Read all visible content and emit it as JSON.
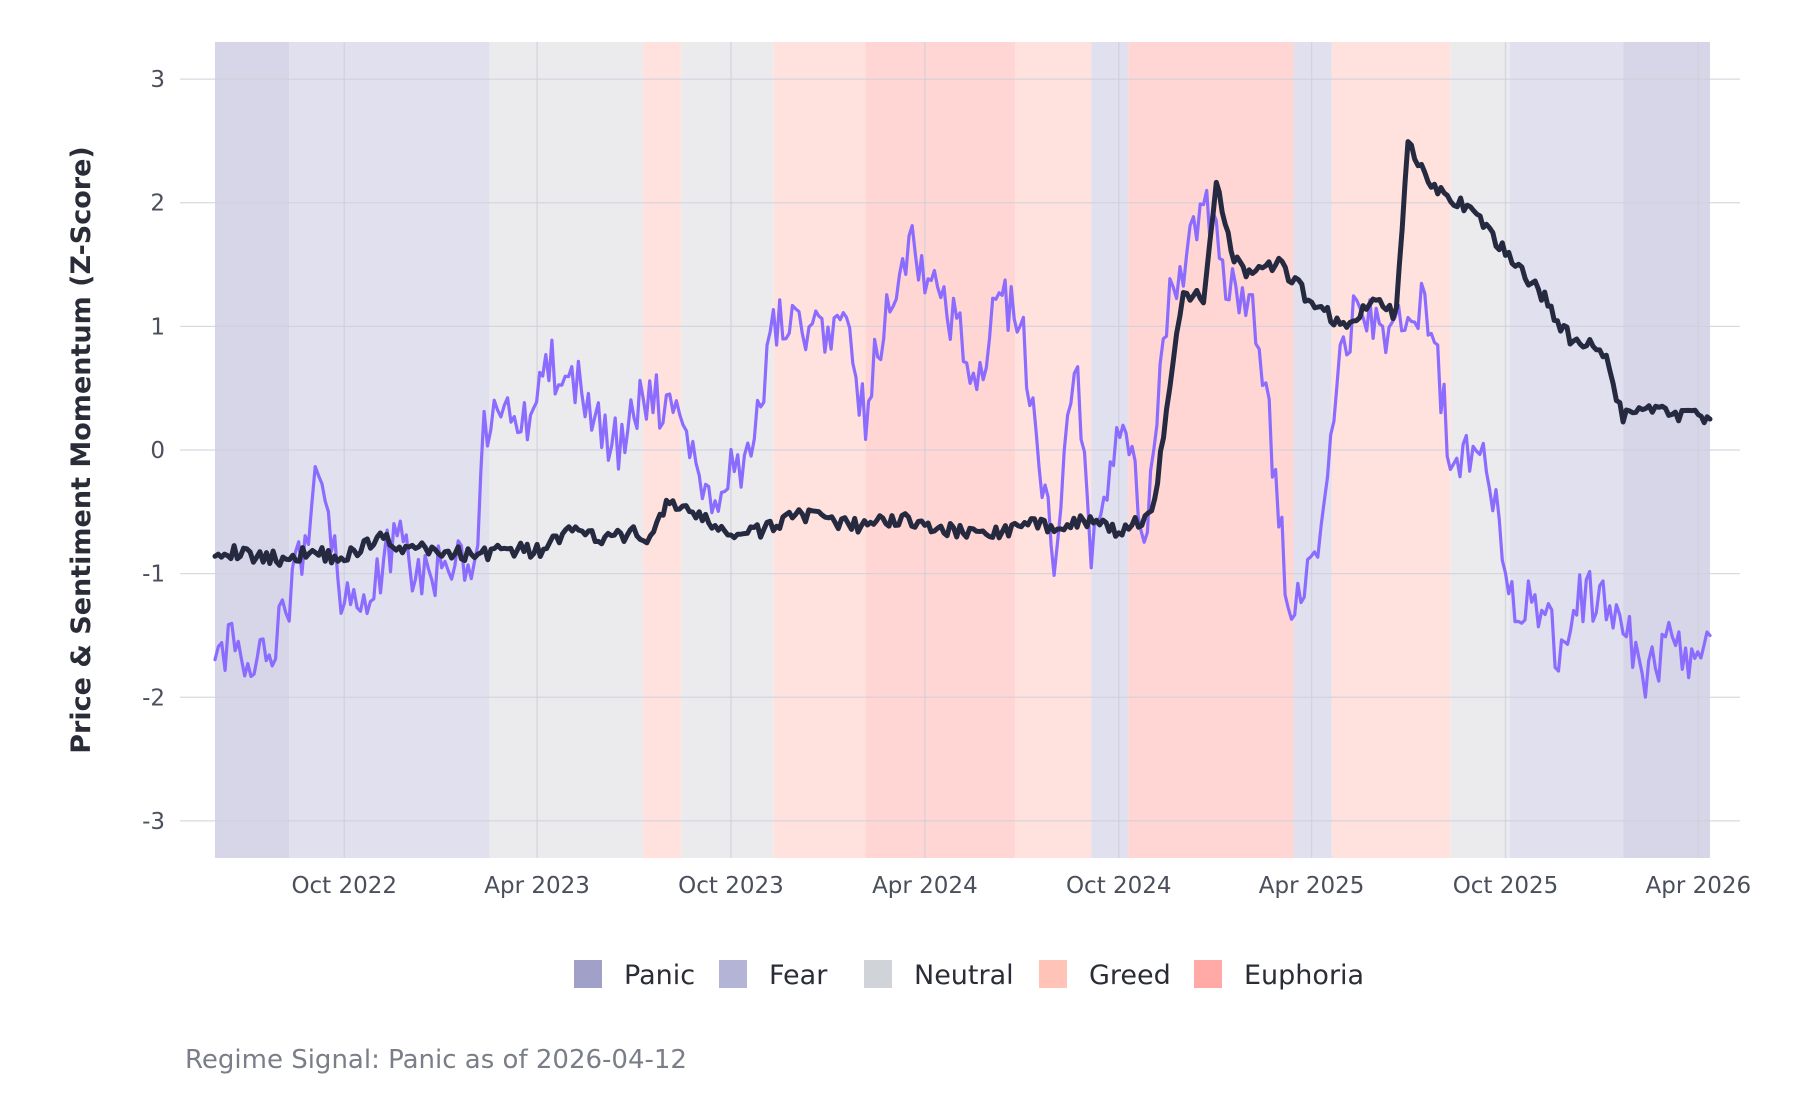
{
  "chart_data": {
    "type": "line",
    "title": "",
    "xlabel": "",
    "ylabel": "Price & Sentiment Momentum (Z-Score)",
    "caption": "Regime Signal: Panic as of 2026-04-12",
    "xlim": [
      "2022-06-01",
      "2026-04-12"
    ],
    "ylim": [
      -3.3,
      3.3
    ],
    "x_ticks": [
      "Oct 2022",
      "Apr 2023",
      "Oct 2023",
      "Apr 2024",
      "Oct 2024",
      "Apr 2025",
      "Oct 2025",
      "Apr 2026"
    ],
    "x_tick_dates": [
      "2022-10-01",
      "2023-04-01",
      "2023-10-01",
      "2024-04-01",
      "2024-10-01",
      "2025-04-01",
      "2025-10-01",
      "2026-04-01"
    ],
    "y_ticks": [
      "3",
      "2",
      "1",
      "0",
      "-1",
      "-2",
      "-3"
    ],
    "y_tick_values": [
      3,
      2,
      1,
      0,
      -1,
      -2,
      -3
    ],
    "grid": true,
    "legend_position": "bottom",
    "legend": [
      {
        "label": "Panic",
        "color": "#a0a0c8"
      },
      {
        "label": "Fear",
        "color": "#b4b4d6"
      },
      {
        "label": "Neutral",
        "color": "#d0d3d8"
      },
      {
        "label": "Greed",
        "color": "#ffc3b8"
      },
      {
        "label": "Euphoria",
        "color": "#ffaaa6"
      }
    ],
    "regime_colors": {
      "Panic": "#d6d6e8",
      "Fear": "#e0e0ee",
      "Neutral": "#ebebee",
      "Greed": "#ffe2de",
      "Euphoria": "#ffd6d3"
    },
    "regimes": [
      {
        "start": "2022-06-01",
        "end": "2022-08-10",
        "regime": "Panic"
      },
      {
        "start": "2022-08-10",
        "end": "2023-02-15",
        "regime": "Fear"
      },
      {
        "start": "2023-02-15",
        "end": "2023-07-10",
        "regime": "Neutral"
      },
      {
        "start": "2023-07-10",
        "end": "2023-08-15",
        "regime": "Greed"
      },
      {
        "start": "2023-08-15",
        "end": "2023-11-10",
        "regime": "Neutral"
      },
      {
        "start": "2023-11-10",
        "end": "2024-02-05",
        "regime": "Greed"
      },
      {
        "start": "2024-02-05",
        "end": "2024-06-25",
        "regime": "Euphoria"
      },
      {
        "start": "2024-06-25",
        "end": "2024-09-05",
        "regime": "Greed"
      },
      {
        "start": "2024-09-05",
        "end": "2024-10-10",
        "regime": "Fear"
      },
      {
        "start": "2024-10-10",
        "end": "2025-03-15",
        "regime": "Euphoria"
      },
      {
        "start": "2025-03-15",
        "end": "2025-04-20",
        "regime": "Fear"
      },
      {
        "start": "2025-04-20",
        "end": "2025-08-10",
        "regime": "Greed"
      },
      {
        "start": "2025-08-10",
        "end": "2025-10-05",
        "regime": "Neutral"
      },
      {
        "start": "2025-10-05",
        "end": "2026-01-20",
        "regime": "Fear"
      },
      {
        "start": "2026-01-20",
        "end": "2026-04-12",
        "regime": "Panic"
      }
    ],
    "series": [
      {
        "color": "#262a40",
        "x": [
          "2022-06-01",
          "2022-07-01",
          "2022-08-01",
          "2022-09-01",
          "2022-10-01",
          "2022-11-01",
          "2022-12-01",
          "2023-01-01",
          "2023-02-01",
          "2023-03-01",
          "2023-04-01",
          "2023-05-01",
          "2023-06-01",
          "2023-07-01",
          "2023-07-20",
          "2023-08-01",
          "2023-09-01",
          "2023-10-01",
          "2023-11-01",
          "2023-12-01",
          "2024-01-01",
          "2024-02-01",
          "2024-03-01",
          "2024-04-01",
          "2024-05-01",
          "2024-06-01",
          "2024-07-01",
          "2024-08-01",
          "2024-09-01",
          "2024-10-01",
          "2024-11-01",
          "2024-11-15",
          "2024-12-01",
          "2024-12-20",
          "2025-01-01",
          "2025-01-15",
          "2025-02-01",
          "2025-03-01",
          "2025-04-01",
          "2025-05-01",
          "2025-06-01",
          "2025-06-20",
          "2025-07-01",
          "2025-07-20",
          "2025-08-01",
          "2025-09-01",
          "2025-10-01",
          "2025-11-01",
          "2025-12-01",
          "2026-01-01",
          "2026-01-20",
          "2026-02-01",
          "2026-03-01",
          "2026-04-01",
          "2026-04-12"
        ],
        "y": [
          -0.8,
          -0.85,
          -0.88,
          -0.82,
          -0.88,
          -0.7,
          -0.8,
          -0.82,
          -0.85,
          -0.8,
          -0.82,
          -0.66,
          -0.72,
          -0.68,
          -0.7,
          -0.4,
          -0.55,
          -0.68,
          -0.66,
          -0.5,
          -0.58,
          -0.62,
          -0.55,
          -0.6,
          -0.66,
          -0.68,
          -0.62,
          -0.6,
          -0.58,
          -0.66,
          -0.55,
          0.3,
          1.3,
          1.2,
          2.2,
          1.6,
          1.4,
          1.5,
          1.2,
          1.0,
          1.2,
          1.1,
          2.5,
          2.2,
          2.1,
          1.9,
          1.6,
          1.3,
          0.9,
          0.8,
          0.25,
          0.35,
          0.3,
          0.28,
          0.25
        ]
      },
      {
        "color": "#8b6cff",
        "x": [
          "2022-06-01",
          "2022-06-20",
          "2022-07-05",
          "2022-07-25",
          "2022-08-10",
          "2022-08-25",
          "2022-09-10",
          "2022-09-25",
          "2022-10-10",
          "2022-11-01",
          "2022-11-20",
          "2022-12-10",
          "2023-01-01",
          "2023-02-01",
          "2023-02-10",
          "2023-03-01",
          "2023-03-20",
          "2023-04-15",
          "2023-05-10",
          "2023-06-01",
          "2023-06-20",
          "2023-07-10",
          "2023-08-01",
          "2023-08-20",
          "2023-09-10",
          "2023-10-01",
          "2023-10-20",
          "2023-11-10",
          "2023-12-01",
          "2023-12-20",
          "2024-01-15",
          "2024-02-05",
          "2024-02-25",
          "2024-03-20",
          "2024-04-10",
          "2024-05-01",
          "2024-05-20",
          "2024-06-10",
          "2024-06-30",
          "2024-07-15",
          "2024-08-01",
          "2024-08-20",
          "2024-09-05",
          "2024-09-20",
          "2024-10-05",
          "2024-10-25",
          "2024-11-15",
          "2024-12-01",
          "2024-12-20",
          "2025-01-10",
          "2025-02-01",
          "2025-02-20",
          "2025-03-10",
          "2025-03-25",
          "2025-04-10",
          "2025-05-01",
          "2025-05-20",
          "2025-06-10",
          "2025-07-01",
          "2025-07-20",
          "2025-08-10",
          "2025-08-25",
          "2025-09-10",
          "2025-09-25",
          "2025-10-10",
          "2025-11-01",
          "2025-11-20",
          "2025-12-10",
          "2026-01-01",
          "2026-01-20",
          "2026-02-10",
          "2026-03-01",
          "2026-03-20",
          "2026-04-12"
        ],
        "y": [
          -1.7,
          -1.6,
          -1.8,
          -1.6,
          -1.2,
          -0.7,
          -0.1,
          -1.1,
          -1.2,
          -1.1,
          -0.6,
          -1.1,
          -0.9,
          -1.0,
          0.1,
          0.4,
          0.2,
          0.7,
          0.5,
          0.2,
          0.0,
          0.5,
          0.3,
          0.2,
          -0.4,
          -0.2,
          0.0,
          1.0,
          1.1,
          0.9,
          1.0,
          0.3,
          1.2,
          1.6,
          1.4,
          1.0,
          0.6,
          1.2,
          1.1,
          0.0,
          -0.9,
          0.8,
          -0.8,
          -0.3,
          0.3,
          -0.7,
          1.1,
          1.5,
          2.0,
          1.4,
          1.2,
          0.2,
          -1.2,
          -1.0,
          -0.8,
          0.9,
          1.2,
          0.9,
          1.2,
          1.1,
          0.0,
          -0.1,
          0.2,
          -0.7,
          -1.2,
          -1.3,
          -1.6,
          -1.2,
          -1.2,
          -1.4,
          -1.8,
          -1.6,
          -1.7,
          -1.5
        ]
      }
    ]
  }
}
